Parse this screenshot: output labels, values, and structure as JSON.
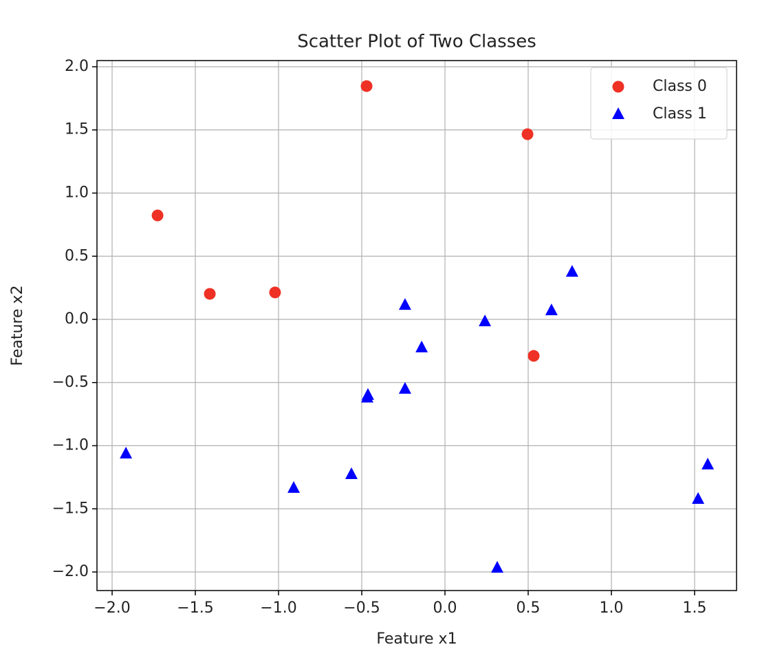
{
  "chart_data": {
    "type": "scatter",
    "title": "Scatter Plot of Two Classes",
    "x_label": "Feature x1",
    "y_label": "Feature x2",
    "xlim": [
      -2.091,
      1.752
    ],
    "ylim": [
      -2.147,
      2.049
    ],
    "xticks": [
      {
        "value": -2,
        "label": "−2.0"
      },
      {
        "value": -1.5,
        "label": "−1.5"
      },
      {
        "value": -1,
        "label": "−1.0"
      },
      {
        "value": -0.5,
        "label": "−0.5"
      },
      {
        "value": 0,
        "label": "0.0"
      },
      {
        "value": 0.5,
        "label": "0.5"
      },
      {
        "value": 1,
        "label": "1.0"
      },
      {
        "value": 1.5,
        "label": "1.5"
      }
    ],
    "yticks": [
      {
        "value": -2,
        "label": "−2.0"
      },
      {
        "value": -1.5,
        "label": "−1.5"
      },
      {
        "value": -1,
        "label": "−1.0"
      },
      {
        "value": -0.5,
        "label": "−0.5"
      },
      {
        "value": 0,
        "label": "0.0"
      },
      {
        "value": 0.5,
        "label": "0.5"
      },
      {
        "value": 1,
        "label": "1.0"
      },
      {
        "value": 1.5,
        "label": "1.5"
      },
      {
        "value": 2,
        "label": "2.0"
      }
    ],
    "grid": true,
    "legend": "upper right",
    "series": [
      {
        "name": "Class 0",
        "color": "#ee3124",
        "marker": "circle",
        "x": [
          -0.471,
          0.496,
          -1.727,
          -1.413,
          -1.021,
          0.533
        ],
        "y": [
          1.847,
          1.466,
          0.823,
          0.202,
          0.213,
          -0.289
        ]
      },
      {
        "name": "Class 1",
        "color": "#0000ff",
        "marker": "triangle",
        "x": [
          -1.917,
          -0.24,
          0.24,
          0.764,
          0.64,
          -0.14,
          -0.463,
          -0.467,
          -0.24,
          -0.909,
          -0.562,
          0.314,
          1.521,
          1.579
        ],
        "y": [
          -1.063,
          0.114,
          -0.016,
          0.376,
          0.071,
          -0.223,
          -0.599,
          -0.62,
          -0.55,
          -1.335,
          -1.226,
          -1.967,
          -1.422,
          -1.15
        ]
      }
    ]
  }
}
